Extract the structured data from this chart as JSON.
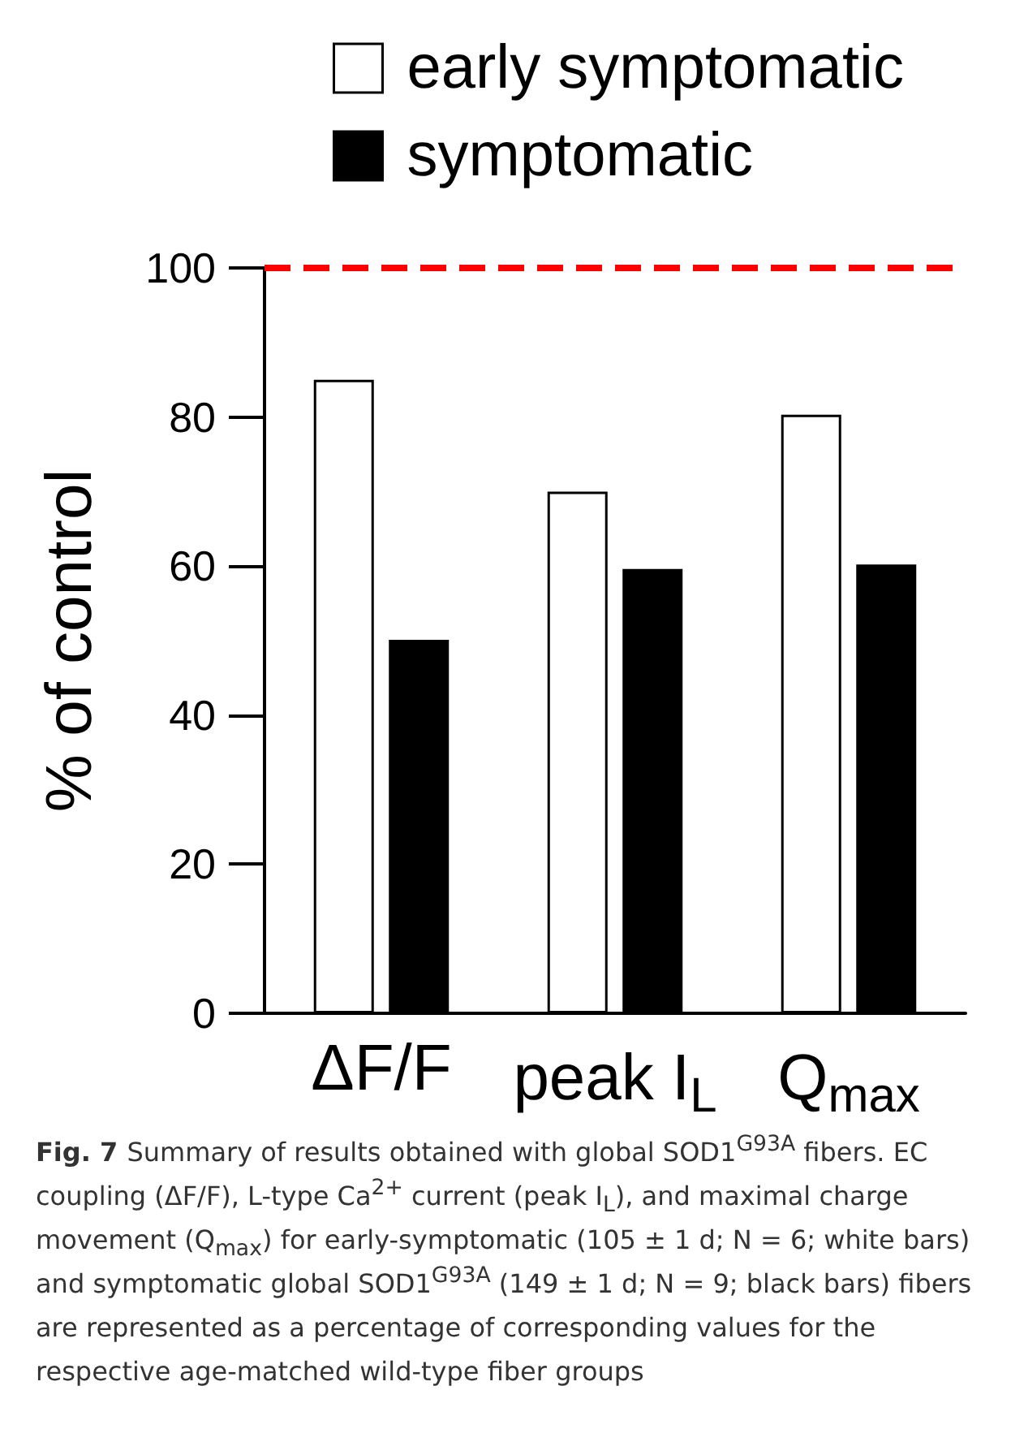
{
  "chart_data": {
    "type": "bar",
    "ylabel": "% of control",
    "categories": [
      "ΔF/F",
      "peak I$_{L}$",
      "Q$_{max}$"
    ],
    "series": [
      {
        "name": "early symptomatic",
        "color": "#ffffff",
        "values": [
          85.0,
          70.0,
          80.3
        ]
      },
      {
        "name": "symptomatic",
        "color": "#000000",
        "values": [
          50.1,
          59.6,
          60.2
        ]
      }
    ],
    "ylim": [
      0,
      100
    ],
    "yticks": [
      0,
      20,
      40,
      60,
      80,
      100
    ],
    "grid": false,
    "legend": "top",
    "ref_lines": [
      {
        "axis": "y",
        "value": 100,
        "color": "#ff0000",
        "line_style": "dashed"
      }
    ],
    "annotations": [
      "Fig. 7",
      "Summary of results obtained with global SOD1$^{G93A}$ fibers. EC coupling (ΔF/F), L-type Ca$^{2+}$ current (peak I$_{L}$), and maximal charge movement (Q$_{max}$) for early-symptomatic (105 ± 1 d; N = 6; white bars) and symptomatic global SOD1$^{G93A}$ (149 ± 1 d; N = 9; black bars) fibers are represented as a percentage of corresponding values for the respective age-matched wild-type fiber groups"
    ]
  }
}
